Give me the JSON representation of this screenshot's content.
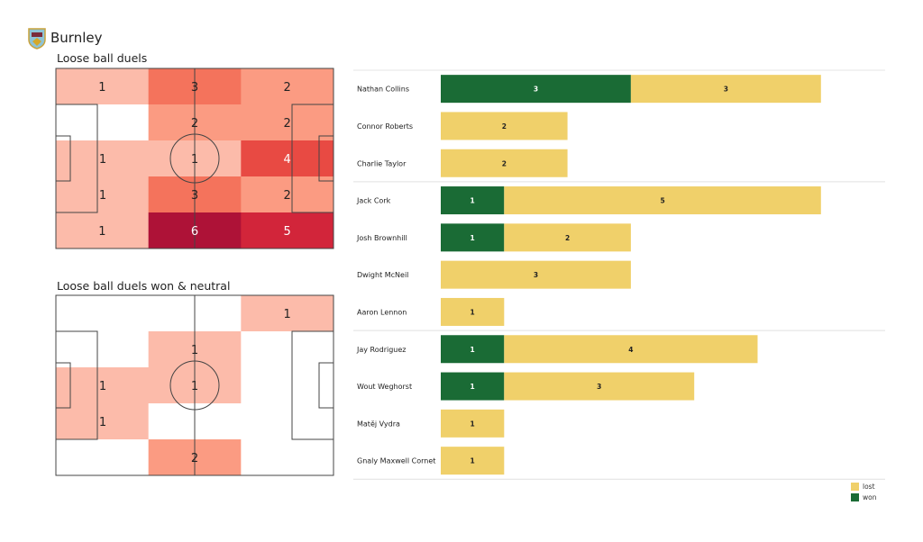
{
  "header": {
    "team": "Burnley",
    "logo_icon": "burnley-crest-icon"
  },
  "chart_data": [
    {
      "type": "heatmap",
      "title": "Loose ball duels",
      "rows": 5,
      "cols": 3,
      "values": [
        [
          1,
          3,
          2
        ],
        [
          0,
          2,
          2
        ],
        [
          1,
          1,
          4
        ],
        [
          1,
          3,
          2
        ],
        [
          1,
          6,
          5
        ]
      ]
    },
    {
      "type": "heatmap",
      "title": "Loose ball duels won & neutral",
      "rows": 5,
      "cols": 3,
      "values": [
        [
          0,
          0,
          1
        ],
        [
          0,
          1,
          0
        ],
        [
          1,
          1,
          0
        ],
        [
          1,
          0,
          0
        ],
        [
          0,
          2,
          0
        ]
      ]
    },
    {
      "type": "bar",
      "orientation": "horizontal",
      "stacked": true,
      "categories": [
        "Nathan Collins",
        "Connor Roberts",
        "Charlie Taylor",
        "Jack Cork",
        "Josh Brownhill",
        "Dwight McNeil",
        "Aaron  Lennon",
        "Jay Rodriguez",
        "Wout Weghorst",
        "Matěj Vydra",
        "Gnaly Maxwell Cornet"
      ],
      "series": [
        {
          "name": "won",
          "color": "#1a6b35",
          "values": [
            3,
            0,
            0,
            1,
            1,
            0,
            0,
            1,
            1,
            0,
            0
          ]
        },
        {
          "name": "lost",
          "color": "#f0d06a",
          "values": [
            3,
            2,
            2,
            5,
            2,
            3,
            1,
            4,
            3,
            1,
            1
          ]
        }
      ],
      "groups_separators_after": [
        2,
        6
      ],
      "legend": {
        "placement": "bottom-right",
        "entries": [
          "lost",
          "won"
        ]
      }
    }
  ]
}
